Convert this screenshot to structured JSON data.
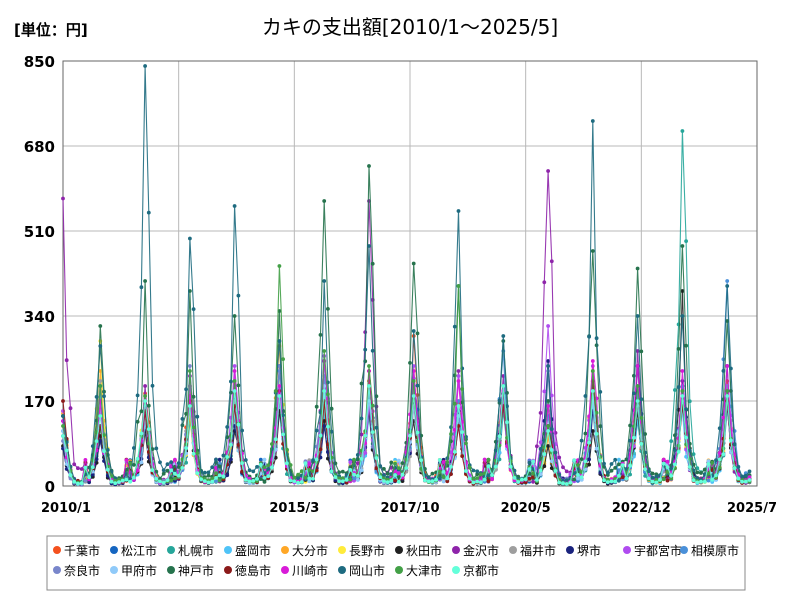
{
  "chart_data": {
    "type": "line",
    "title": "カキの支出額[2010/1～2025/5]",
    "unit_label": "[単位：円]",
    "xlabel": "",
    "ylabel": "",
    "ylim": [
      0,
      850
    ],
    "y_ticks": [
      0,
      170,
      340,
      510,
      680,
      850
    ],
    "y_tick_labels": [
      "0",
      "170",
      "340",
      "510",
      "680",
      "850"
    ],
    "x_range": [
      "2010/1",
      "2025/7"
    ],
    "x_ticks": [
      "2010/1",
      "2012/8",
      "2015/3",
      "2017/10",
      "2020/5",
      "2022/12",
      "2025/7"
    ],
    "grid": true,
    "legend_position": "bottom",
    "peak_months": [
      "2010/1",
      "2010/11",
      "2011/11",
      "2012/11",
      "2013/11",
      "2014/11",
      "2015/11",
      "2016/11",
      "2017/11",
      "2018/11",
      "2019/11",
      "2020/11",
      "2021/11",
      "2022/11",
      "2023/11",
      "2024/11"
    ],
    "series": [
      {
        "name": "千葉市",
        "color": "#f4511e",
        "peaks": [
          150,
          175,
          185,
          200,
          205,
          190,
          195,
          210,
          300,
          165,
          190,
          120,
          210,
          190,
          175,
          210
        ]
      },
      {
        "name": "松江市",
        "color": "#1565c0",
        "peaks": [
          130,
          120,
          150,
          140,
          175,
          200,
          170,
          160,
          215,
          150,
          175,
          110,
          185,
          160,
          180,
          180
        ]
      },
      {
        "name": "札幌市",
        "color": "#26a69a",
        "peaks": [
          110,
          115,
          120,
          130,
          140,
          150,
          140,
          150,
          160,
          140,
          150,
          120,
          155,
          130,
          710,
          155
        ]
      },
      {
        "name": "盛岡市",
        "color": "#4fc3f7",
        "peaks": [
          110,
          180,
          130,
          150,
          145,
          160,
          150,
          140,
          170,
          120,
          170,
          100,
          160,
          130,
          150,
          150
        ]
      },
      {
        "name": "大分市",
        "color": "#ffa726",
        "peaks": [
          145,
          230,
          170,
          140,
          160,
          280,
          170,
          180,
          190,
          130,
          200,
          100,
          230,
          170,
          180,
          175
        ]
      },
      {
        "name": "長野市",
        "color": "#ffeb3b",
        "peaks": [
          150,
          290,
          180,
          150,
          200,
          230,
          180,
          200,
          200,
          160,
          200,
          120,
          240,
          200,
          190,
          200
        ]
      },
      {
        "name": "秋田市",
        "color": "#212121",
        "peaks": [
          80,
          100,
          110,
          160,
          110,
          150,
          130,
          150,
          130,
          130,
          180,
          80,
          110,
          150,
          390,
          160
        ]
      },
      {
        "name": "金沢市",
        "color": "#8e24aa",
        "peaks": [
          575,
          150,
          200,
          220,
          160,
          190,
          250,
          570,
          190,
          230,
          220,
          630,
          200,
          270,
          200,
          170
        ]
      },
      {
        "name": "福井市",
        "color": "#9e9e9e",
        "peaks": [
          100,
          210,
          170,
          180,
          170,
          190,
          180,
          170,
          160,
          150,
          180,
          150,
          200,
          190,
          200,
          190
        ]
      },
      {
        "name": "堺市",
        "color": "#1a237e",
        "peaks": [
          75,
          90,
          130,
          180,
          120,
          240,
          120,
          200,
          180,
          150,
          185,
          250,
          150,
          240,
          210,
          240
        ]
      },
      {
        "name": "宇都宮市",
        "color": "#b04cf0",
        "peaks": [
          150,
          160,
          150,
          200,
          240,
          180,
          260,
          160,
          240,
          220,
          200,
          320,
          240,
          200,
          180,
          200
        ]
      },
      {
        "name": "相模原市",
        "color": "#4a90d9",
        "peaks": [
          100,
          200,
          160,
          180,
          190,
          230,
          220,
          180,
          200,
          170,
          270,
          140,
          210,
          180,
          200,
          410
        ]
      },
      {
        "name": "奈良市",
        "color": "#7986cb",
        "peaks": [
          90,
          150,
          160,
          240,
          200,
          240,
          250,
          200,
          190,
          160,
          200,
          230,
          180,
          200,
          190,
          200
        ]
      },
      {
        "name": "甲府市",
        "color": "#90caf9",
        "peaks": [
          110,
          160,
          130,
          170,
          150,
          200,
          200,
          170,
          160,
          140,
          180,
          120,
          170,
          160,
          170,
          170
        ]
      },
      {
        "name": "神戸市",
        "color": "#26734d",
        "peaks": [
          140,
          320,
          410,
          390,
          340,
          350,
          570,
          640,
          445,
          400,
          290,
          170,
          470,
          435,
          480,
          330
        ]
      },
      {
        "name": "徳島市",
        "color": "#8b1a1a",
        "peaks": [
          170,
          120,
          150,
          170,
          160,
          190,
          170,
          230,
          180,
          120,
          160,
          120,
          210,
          170,
          160,
          170
        ]
      },
      {
        "name": "川崎市",
        "color": "#d81bd8",
        "peaks": [
          130,
          170,
          170,
          180,
          230,
          200,
          250,
          230,
          230,
          210,
          190,
          160,
          250,
          240,
          230,
          240
        ]
      },
      {
        "name": "岡山市",
        "color": "#1e6b80",
        "peaks": [
          140,
          280,
          840,
          495,
          560,
          290,
          410,
          480,
          310,
          550,
          300,
          240,
          730,
          340,
          340,
          400
        ]
      },
      {
        "name": "大津市",
        "color": "#43a047",
        "peaks": [
          120,
          200,
          180,
          230,
          210,
          440,
          270,
          240,
          210,
          400,
          200,
          120,
          230,
          200,
          190,
          190
        ]
      },
      {
        "name": "京都市",
        "color": "#64ffda",
        "peaks": [
          100,
          140,
          170,
          160,
          190,
          180,
          190,
          200,
          180,
          160,
          200,
          110,
          190,
          170,
          180,
          180
        ]
      }
    ]
  }
}
